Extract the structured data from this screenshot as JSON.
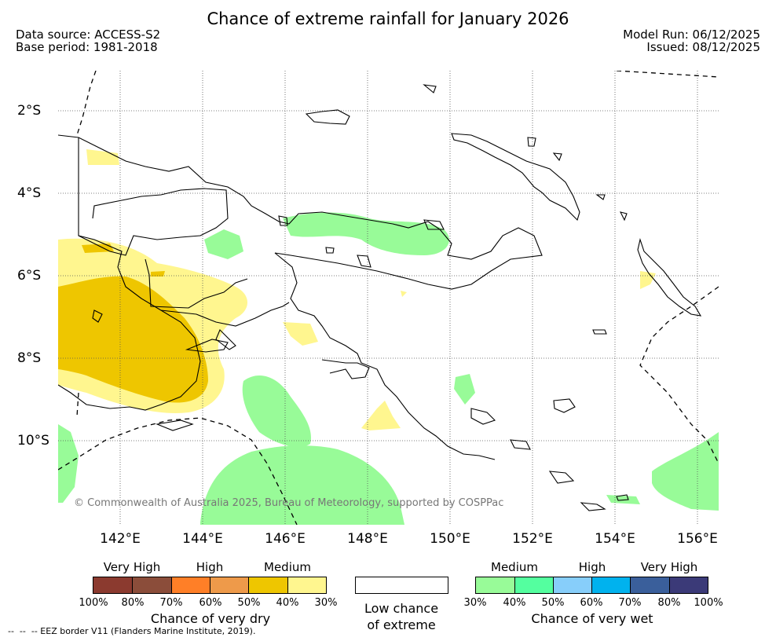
{
  "title": "Chance of extreme rainfall for January 2026",
  "header": {
    "data_source": "Data source: ACCESS-S2",
    "base_period": "Base period: 1981-2018",
    "model_run": "Model Run: 06/12/2025",
    "issued": "Issued: 08/12/2025"
  },
  "axes": {
    "lat_labels": [
      "2°S",
      "4°S",
      "6°S",
      "8°S",
      "10°S"
    ],
    "lon_labels": [
      "142°E",
      "144°E",
      "146°E",
      "148°E",
      "150°E",
      "152°E",
      "154°E",
      "156°E"
    ]
  },
  "copyright": "© Commonwealth of Australia 2025, Bureau of Meteorology, supported by COSPPac",
  "legend": {
    "dry": {
      "levels": [
        "Very High",
        "High",
        "Medium"
      ],
      "colors": [
        "#8b3a2f",
        "#8b4d3a",
        "#ff7f27",
        "#ee9a4a",
        "#eec600",
        "#fff68f"
      ],
      "percent_labels": [
        "100%",
        "80%",
        "70%",
        "60%",
        "50%",
        "40%",
        "30%"
      ],
      "caption": "Chance of very dry"
    },
    "low": {
      "caption_line1": "Low chance",
      "caption_line2": "of extreme"
    },
    "wet": {
      "levels": [
        "Medium",
        "High",
        "Very High"
      ],
      "colors": [
        "#98fb98",
        "#54ff9f",
        "#87cefa",
        "#00b2ee",
        "#3a5f9b",
        "#3b3a78"
      ],
      "percent_labels": [
        "30%",
        "40%",
        "50%",
        "60%",
        "70%",
        "80%",
        "100%"
      ],
      "caption": "Chance of very wet"
    },
    "eez_note": "--  --  -- EEZ border V11 (Flanders Marine Institute, 2019)."
  },
  "colors": {
    "dry_medium": "#eec600",
    "dry_low": "#fff68f",
    "wet_medium": "#98fb98",
    "coast": "#000000",
    "grid": "#555555"
  }
}
